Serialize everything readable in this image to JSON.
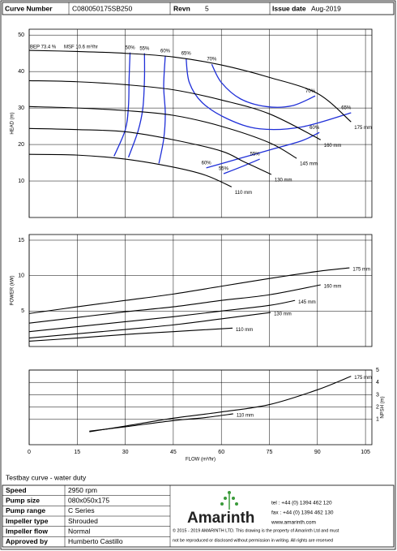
{
  "header": {
    "curve_number_label": "Curve Number",
    "curve_number": "C080050175SB250",
    "revision_label": "Revn",
    "revision": "5",
    "issue_date_label": "Issue date",
    "issue_date": "Aug-2019"
  },
  "chart_data": [
    {
      "type": "line",
      "ylabel": "HEAD (m)",
      "xlim": [
        0,
        107
      ],
      "xticks": [
        0,
        15,
        30,
        45,
        60,
        75,
        90,
        105
      ],
      "ylim": [
        0,
        51.6
      ],
      "yticks": [
        10,
        20,
        30,
        40,
        50
      ],
      "grid": true,
      "annotations": [
        "BEP 73.4 %",
        "MSF 10.6 m³/hr"
      ],
      "series": [
        {
          "name": "175 mm",
          "color": "#000000",
          "x": [
            0,
            15,
            30,
            45,
            60,
            75,
            90,
            100.5
          ],
          "values": [
            45.8,
            45.5,
            45,
            44,
            41.8,
            38.4,
            34,
            26.2
          ]
        },
        {
          "name": "160 mm",
          "color": "#000000",
          "x": [
            0,
            15,
            30,
            45,
            60,
            75,
            91
          ],
          "values": [
            37.5,
            37.2,
            36.4,
            35,
            32.2,
            28.4,
            21.3
          ]
        },
        {
          "name": "145 mm",
          "color": "#000000",
          "x": [
            0,
            15,
            30,
            45,
            60,
            75,
            83.5
          ],
          "values": [
            30.4,
            30,
            29.3,
            28,
            25,
            20.5,
            16.2
          ]
        },
        {
          "name": "130 mm",
          "color": "#000000",
          "x": [
            0,
            15,
            30,
            45,
            60,
            67,
            75.6
          ],
          "values": [
            24.4,
            24.1,
            23.5,
            21.3,
            18.2,
            15.3,
            11.8
          ]
        },
        {
          "name": "110 mm",
          "color": "#000000",
          "x": [
            0,
            15,
            30,
            45,
            55,
            63.2
          ],
          "values": [
            17.3,
            17.1,
            16,
            13.8,
            11.6,
            8.4
          ]
        }
      ],
      "contour_color": "#1f2fd8",
      "contours": [
        {
          "labels": [
            "50%"
          ],
          "x": [
            31.5,
            31.2,
            31,
            30,
            26.5
          ],
          "y": [
            45.2,
            38,
            30.5,
            24,
            16.8
          ]
        },
        {
          "labels": [
            "55%"
          ],
          "x": [
            36,
            36,
            35.5,
            34,
            31
          ],
          "y": [
            45,
            38,
            30,
            23.7,
            16.5
          ]
        },
        {
          "labels": [
            "60%"
          ],
          "x": [
            42.5,
            42,
            42.5,
            42,
            40.5
          ],
          "y": [
            44.3,
            36,
            28.5,
            21.5,
            14.8
          ]
        },
        {
          "labels": [
            "65%",
            "65%"
          ],
          "x": [
            49,
            50,
            54,
            62,
            72,
            85,
            100.5
          ],
          "y": [
            43.6,
            37,
            31.5,
            27,
            24.3,
            24.8,
            28.7
          ]
        },
        {
          "labels": [
            "70%",
            "70%"
          ],
          "x": [
            57,
            60,
            66,
            74,
            82,
            89.3
          ],
          "y": [
            42,
            37,
            32.5,
            30.4,
            30.6,
            33.3
          ]
        },
        {
          "labels": [
            "60%",
            "60%"
          ],
          "x": [
            55.3,
            65,
            75,
            85,
            90.6
          ],
          "y": [
            13.6,
            16,
            18.5,
            21,
            23.3
          ]
        },
        {
          "labels": [
            "55%",
            "55%"
          ],
          "x": [
            60.7,
            66,
            72
          ],
          "y": [
            12,
            13.8,
            16
          ]
        }
      ]
    },
    {
      "type": "line",
      "ylabel": "POWER (kW)",
      "xlim": [
        0,
        107
      ],
      "xticks": [
        0,
        15,
        30,
        45,
        60,
        75,
        90,
        105
      ],
      "ylim": [
        0,
        15.8
      ],
      "yticks": [
        5,
        10,
        15
      ],
      "grid": true,
      "series": [
        {
          "name": "175 mm",
          "color": "#000000",
          "x": [
            0,
            15,
            30,
            45,
            60,
            75,
            90,
            100
          ],
          "values": [
            4.65,
            5.6,
            6.5,
            7.4,
            8.5,
            9.6,
            10.6,
            11.1
          ]
        },
        {
          "name": "160 mm",
          "color": "#000000",
          "x": [
            0,
            15,
            30,
            45,
            60,
            75,
            91
          ],
          "values": [
            3.3,
            4.1,
            4.9,
            5.6,
            6.5,
            7.3,
            8.7
          ]
        },
        {
          "name": "145 mm",
          "color": "#000000",
          "x": [
            0,
            15,
            30,
            45,
            60,
            75,
            83
          ],
          "values": [
            2.1,
            2.8,
            3.5,
            4.2,
            5,
            5.8,
            6.5
          ]
        },
        {
          "name": "130 mm",
          "color": "#000000",
          "x": [
            0,
            15,
            30,
            45,
            60,
            75.4
          ],
          "values": [
            1.2,
            1.8,
            2.4,
            3.05,
            3.9,
            4.8
          ]
        },
        {
          "name": "110 mm",
          "color": "#000000",
          "x": [
            0,
            15,
            30,
            45,
            63.5
          ],
          "values": [
            0.75,
            1.2,
            1.7,
            2.1,
            2.6
          ]
        }
      ]
    },
    {
      "type": "line",
      "ylabel": "NPSH (m)",
      "yaxis_side": "right",
      "xlabel": "FLOW (m³/hr)",
      "xlim": [
        0,
        107
      ],
      "xticks": [
        0,
        15,
        30,
        45,
        60,
        75,
        90,
        105
      ],
      "ylim": [
        -1.05,
        5
      ],
      "yticks": [
        1,
        2,
        3,
        4,
        5
      ],
      "grid": true,
      "series": [
        {
          "name": "175 mm",
          "color": "#000000",
          "x": [
            18.8,
            30,
            45,
            60,
            75,
            90,
            100.5
          ],
          "values": [
            0,
            0.46,
            1.1,
            1.6,
            2.2,
            3.4,
            4.5
          ]
        },
        {
          "name": "110 mm",
          "color": "#000000",
          "x": [
            18.8,
            30,
            45,
            55,
            63.7
          ],
          "values": [
            0.05,
            0.4,
            0.9,
            1.15,
            1.45
          ]
        }
      ]
    }
  ],
  "caption": "Testbay curve - water duty",
  "specs": {
    "rows": [
      [
        "Speed",
        "2950 rpm"
      ],
      [
        "Pump size",
        "080x050x175"
      ],
      [
        "Pump range",
        "C Series"
      ],
      [
        "Impeller type",
        "Shrouded"
      ],
      [
        "Impeller flow",
        "Normal"
      ],
      [
        "Approved by",
        "Humberto Castillo"
      ]
    ]
  },
  "company": {
    "name": "Amarinth",
    "tel": "tel : +44 (0) 1394 462 120",
    "fax": "fax : +44 (0) 1394 462 130",
    "web": "www.amarinth.com",
    "copyright": "© 2015 - 2019 AMARINTH LTD. This drawing is the property of Amarinth Ltd and must",
    "notice": "not be reproduced or disclosed without permission in writing. All rights are reserved"
  }
}
